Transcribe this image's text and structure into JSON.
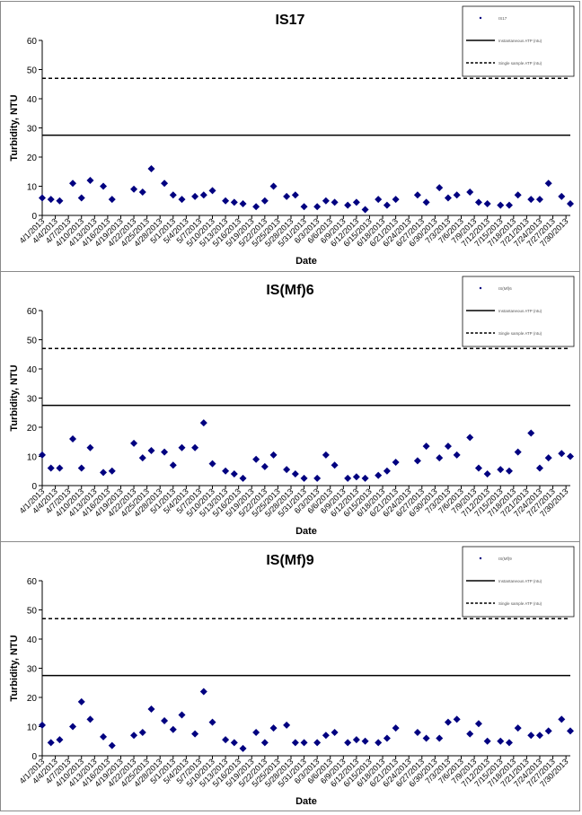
{
  "charts": [
    {
      "type": "scatter",
      "title": "IS17",
      "xlabel": "Date",
      "ylabel": "Turbidity, NTU",
      "ylim": [
        0,
        60
      ],
      "yticks": [
        0,
        10,
        20,
        30,
        40,
        50,
        60
      ],
      "xticks": [
        "4/1/2013",
        "4/4/2013",
        "4/7/2013",
        "4/10/2013",
        "4/13/2013",
        "4/16/2013",
        "4/19/2013",
        "4/22/2013",
        "4/25/2013",
        "4/28/2013",
        "5/1/2013",
        "5/4/2013",
        "5/7/2013",
        "5/10/2013",
        "5/13/2013",
        "5/16/2013",
        "5/19/2013",
        "5/22/2013",
        "5/25/2013",
        "5/28/2013",
        "5/31/2013",
        "6/3/2013",
        "6/6/2013",
        "6/9/2013",
        "6/12/2013",
        "6/15/2013",
        "6/18/2013",
        "6/21/2013",
        "6/24/2013",
        "6/27/2013",
        "6/30/2013",
        "7/3/2013",
        "7/6/2013",
        "7/9/2013",
        "7/12/2013",
        "7/15/2013",
        "7/18/2013",
        "7/21/2013",
        "7/24/2013",
        "7/27/2013",
        "7/30/2013"
      ],
      "x_range": [
        "4/1/2013",
        "7/31/2013"
      ],
      "legend_position": "top-right",
      "legend": [
        {
          "label": "IS17",
          "style": "marker"
        },
        {
          "label": "Instantaneous ATP (ntu)",
          "style": "solid"
        },
        {
          "label": "Single sample ATP (ntu)",
          "style": "dashed"
        }
      ],
      "color": "#000080",
      "series": [
        {
          "name": "IS17",
          "points": [
            [
              "4/1/2013",
              6
            ],
            [
              "4/3/2013",
              5.5
            ],
            [
              "4/5/2013",
              5
            ],
            [
              "4/8/2013",
              11
            ],
            [
              "4/10/2013",
              6
            ],
            [
              "4/12/2013",
              12
            ],
            [
              "4/15/2013",
              10
            ],
            [
              "4/17/2013",
              5.5
            ],
            [
              "4/22/2013",
              9
            ],
            [
              "4/24/2013",
              8
            ],
            [
              "4/26/2013",
              16
            ],
            [
              "4/29/2013",
              11
            ],
            [
              "5/1/2013",
              7
            ],
            [
              "5/3/2013",
              5.5
            ],
            [
              "5/6/2013",
              6.5
            ],
            [
              "5/8/2013",
              7
            ],
            [
              "5/10/2013",
              8.5
            ],
            [
              "5/13/2013",
              5
            ],
            [
              "5/15/2013",
              4.5
            ],
            [
              "5/17/2013",
              4
            ],
            [
              "5/20/2013",
              3
            ],
            [
              "5/22/2013",
              5
            ],
            [
              "5/24/2013",
              10
            ],
            [
              "5/27/2013",
              6.5
            ],
            [
              "5/29/2013",
              7
            ],
            [
              "5/31/2013",
              3
            ],
            [
              "6/3/2013",
              3
            ],
            [
              "6/5/2013",
              5
            ],
            [
              "6/7/2013",
              4.5
            ],
            [
              "6/10/2013",
              3.5
            ],
            [
              "6/12/2013",
              4.5
            ],
            [
              "6/14/2013",
              2
            ],
            [
              "6/17/2013",
              5.5
            ],
            [
              "6/19/2013",
              3.5
            ],
            [
              "6/21/2013",
              5.5
            ],
            [
              "6/26/2013",
              7
            ],
            [
              "6/28/2013",
              4.5
            ],
            [
              "7/1/2013",
              9.5
            ],
            [
              "7/3/2013",
              6
            ],
            [
              "7/5/2013",
              7
            ],
            [
              "7/8/2013",
              8
            ],
            [
              "7/10/2013",
              4.5
            ],
            [
              "7/12/2013",
              4
            ],
            [
              "7/15/2013",
              3.5
            ],
            [
              "7/17/2013",
              3.5
            ],
            [
              "7/19/2013",
              7
            ],
            [
              "7/22/2013",
              5.5
            ],
            [
              "7/24/2013",
              5.5
            ],
            [
              "7/26/2013",
              11
            ],
            [
              "7/29/2013",
              6.5
            ],
            [
              "7/31/2013",
              4
            ]
          ]
        },
        {
          "name": "Instantaneous ATP (ntu)",
          "style": "solid",
          "y": 27.5
        },
        {
          "name": "Single sample ATP (ntu)",
          "style": "dashed",
          "y": 47
        }
      ]
    },
    {
      "type": "scatter",
      "title": "IS(Mf)6",
      "xlabel": "Date",
      "ylabel": "Turbidity, NTU",
      "ylim": [
        0,
        60
      ],
      "yticks": [
        0,
        10,
        20,
        30,
        40,
        50,
        60
      ],
      "xticks": [
        "4/1/2013",
        "4/4/2013",
        "4/7/2013",
        "4/10/2013",
        "4/13/2013",
        "4/16/2013",
        "4/19/2013",
        "4/22/2013",
        "4/25/2013",
        "4/28/2013",
        "5/1/2013",
        "5/4/2013",
        "5/7/2013",
        "5/10/2013",
        "5/13/2013",
        "5/16/2013",
        "5/19/2013",
        "5/22/2013",
        "5/25/2013",
        "5/28/2013",
        "5/31/2013",
        "6/3/2013",
        "6/6/2013",
        "6/9/2013",
        "6/12/2013",
        "6/15/2013",
        "6/18/2013",
        "6/21/2013",
        "6/24/2013",
        "6/27/2013",
        "6/30/2013",
        "7/3/2013",
        "7/6/2013",
        "7/9/2013",
        "7/12/2013",
        "7/15/2013",
        "7/18/2013",
        "7/21/2013",
        "7/24/2013",
        "7/27/2013",
        "7/30/2013"
      ],
      "x_range": [
        "4/1/2013",
        "7/31/2013"
      ],
      "legend_position": "top-right",
      "legend": [
        {
          "label": "IS(Mf)6",
          "style": "marker"
        },
        {
          "label": "Instantaneous ATP (ntu)",
          "style": "solid"
        },
        {
          "label": "Single sample ATP (ntu)",
          "style": "dashed"
        }
      ],
      "color": "#000080",
      "series": [
        {
          "name": "IS(Mf)6",
          "points": [
            [
              "4/1/2013",
              10.5
            ],
            [
              "4/3/2013",
              6
            ],
            [
              "4/5/2013",
              6
            ],
            [
              "4/8/2013",
              16
            ],
            [
              "4/10/2013",
              6
            ],
            [
              "4/12/2013",
              13
            ],
            [
              "4/15/2013",
              4.5
            ],
            [
              "4/17/2013",
              5
            ],
            [
              "4/22/2013",
              14.5
            ],
            [
              "4/24/2013",
              9.5
            ],
            [
              "4/26/2013",
              12
            ],
            [
              "4/29/2013",
              11.5
            ],
            [
              "5/1/2013",
              7
            ],
            [
              "5/3/2013",
              13
            ],
            [
              "5/6/2013",
              13
            ],
            [
              "5/8/2013",
              21.5
            ],
            [
              "5/10/2013",
              7.5
            ],
            [
              "5/13/2013",
              5
            ],
            [
              "5/15/2013",
              4
            ],
            [
              "5/17/2013",
              2.5
            ],
            [
              "5/20/2013",
              9
            ],
            [
              "5/22/2013",
              6.5
            ],
            [
              "5/24/2013",
              10.5
            ],
            [
              "5/27/2013",
              5.5
            ],
            [
              "5/29/2013",
              4
            ],
            [
              "5/31/2013",
              2.5
            ],
            [
              "6/3/2013",
              2.5
            ],
            [
              "6/5/2013",
              10.5
            ],
            [
              "6/7/2013",
              7
            ],
            [
              "6/10/2013",
              2.5
            ],
            [
              "6/12/2013",
              3
            ],
            [
              "6/14/2013",
              2.5
            ],
            [
              "6/17/2013",
              3.5
            ],
            [
              "6/19/2013",
              5
            ],
            [
              "6/21/2013",
              8
            ],
            [
              "6/26/2013",
              8.5
            ],
            [
              "6/28/2013",
              13.5
            ],
            [
              "7/1/2013",
              9.5
            ],
            [
              "7/3/2013",
              13.5
            ],
            [
              "7/5/2013",
              10.5
            ],
            [
              "7/8/2013",
              16.5
            ],
            [
              "7/10/2013",
              6
            ],
            [
              "7/12/2013",
              4
            ],
            [
              "7/15/2013",
              5.5
            ],
            [
              "7/17/2013",
              5
            ],
            [
              "7/19/2013",
              11.5
            ],
            [
              "7/22/2013",
              18
            ],
            [
              "7/24/2013",
              6
            ],
            [
              "7/26/2013",
              9.5
            ],
            [
              "7/29/2013",
              11
            ],
            [
              "7/31/2013",
              10
            ]
          ]
        },
        {
          "name": "Instantaneous ATP (ntu)",
          "style": "solid",
          "y": 27.5
        },
        {
          "name": "Single sample ATP (ntu)",
          "style": "dashed",
          "y": 47
        }
      ]
    },
    {
      "type": "scatter",
      "title": "IS(Mf)9",
      "xlabel": "Date",
      "ylabel": "Turbidity, NTU",
      "ylim": [
        0,
        60
      ],
      "yticks": [
        0,
        10,
        20,
        30,
        40,
        50,
        60
      ],
      "xticks": [
        "4/1/2013",
        "4/4/2013",
        "4/7/2013",
        "4/10/2013",
        "4/13/2013",
        "4/16/2013",
        "4/19/2013",
        "4/22/2013",
        "4/25/2013",
        "4/28/2013",
        "5/1/2013",
        "5/4/2013",
        "5/7/2013",
        "5/10/2013",
        "5/13/2013",
        "5/16/2013",
        "5/19/2013",
        "5/22/2013",
        "5/25/2013",
        "5/28/2013",
        "5/31/2013",
        "6/3/2013",
        "6/6/2013",
        "6/9/2013",
        "6/12/2013",
        "6/15/2013",
        "6/18/2013",
        "6/21/2013",
        "6/24/2013",
        "6/27/2013",
        "6/30/2013",
        "7/3/2013",
        "7/6/2013",
        "7/9/2013",
        "7/12/2013",
        "7/15/2013",
        "7/18/2013",
        "7/21/2013",
        "7/24/2013",
        "7/27/2013",
        "7/30/2013"
      ],
      "x_range": [
        "4/1/2013",
        "7/31/2013"
      ],
      "legend_position": "top-right",
      "legend": [
        {
          "label": "IS(Mf)9",
          "style": "marker"
        },
        {
          "label": "Instantaneous ATP (ntu)",
          "style": "solid"
        },
        {
          "label": "Single sample ATP (ntu)",
          "style": "dashed"
        }
      ],
      "color": "#000080",
      "series": [
        {
          "name": "IS(Mf)9",
          "points": [
            [
              "4/1/2013",
              10.5
            ],
            [
              "4/3/2013",
              4.5
            ],
            [
              "4/5/2013",
              5.5
            ],
            [
              "4/8/2013",
              10
            ],
            [
              "4/10/2013",
              18.5
            ],
            [
              "4/12/2013",
              12.5
            ],
            [
              "4/15/2013",
              6.5
            ],
            [
              "4/17/2013",
              3.5
            ],
            [
              "4/22/2013",
              7
            ],
            [
              "4/24/2013",
              8
            ],
            [
              "4/26/2013",
              16
            ],
            [
              "4/29/2013",
              12
            ],
            [
              "5/1/2013",
              9
            ],
            [
              "5/3/2013",
              14
            ],
            [
              "5/6/2013",
              7.5
            ],
            [
              "5/8/2013",
              22
            ],
            [
              "5/10/2013",
              11.5
            ],
            [
              "5/13/2013",
              5.5
            ],
            [
              "5/15/2013",
              4.5
            ],
            [
              "5/17/2013",
              2.5
            ],
            [
              "5/20/2013",
              8
            ],
            [
              "5/22/2013",
              4.5
            ],
            [
              "5/24/2013",
              9.5
            ],
            [
              "5/27/2013",
              10.5
            ],
            [
              "5/29/2013",
              4.5
            ],
            [
              "5/31/2013",
              4.5
            ],
            [
              "6/3/2013",
              4.5
            ],
            [
              "6/5/2013",
              7
            ],
            [
              "6/7/2013",
              8
            ],
            [
              "6/10/2013",
              4.5
            ],
            [
              "6/12/2013",
              5.5
            ],
            [
              "6/14/2013",
              5
            ],
            [
              "6/17/2013",
              4.5
            ],
            [
              "6/19/2013",
              6
            ],
            [
              "6/21/2013",
              9.5
            ],
            [
              "6/26/2013",
              8
            ],
            [
              "6/28/2013",
              6
            ],
            [
              "7/1/2013",
              6
            ],
            [
              "7/3/2013",
              11.5
            ],
            [
              "7/5/2013",
              12.5
            ],
            [
              "7/8/2013",
              7.5
            ],
            [
              "7/10/2013",
              11
            ],
            [
              "7/12/2013",
              5
            ],
            [
              "7/15/2013",
              5
            ],
            [
              "7/17/2013",
              4.5
            ],
            [
              "7/19/2013",
              9.5
            ],
            [
              "7/22/2013",
              7
            ],
            [
              "7/24/2013",
              7
            ],
            [
              "7/26/2013",
              8.5
            ],
            [
              "7/29/2013",
              12.5
            ],
            [
              "7/31/2013",
              8.5
            ]
          ]
        },
        {
          "name": "Instantaneous ATP (ntu)",
          "style": "solid",
          "y": 27.5
        },
        {
          "name": "Single sample ATP (ntu)",
          "style": "dashed",
          "y": 47
        }
      ]
    }
  ]
}
